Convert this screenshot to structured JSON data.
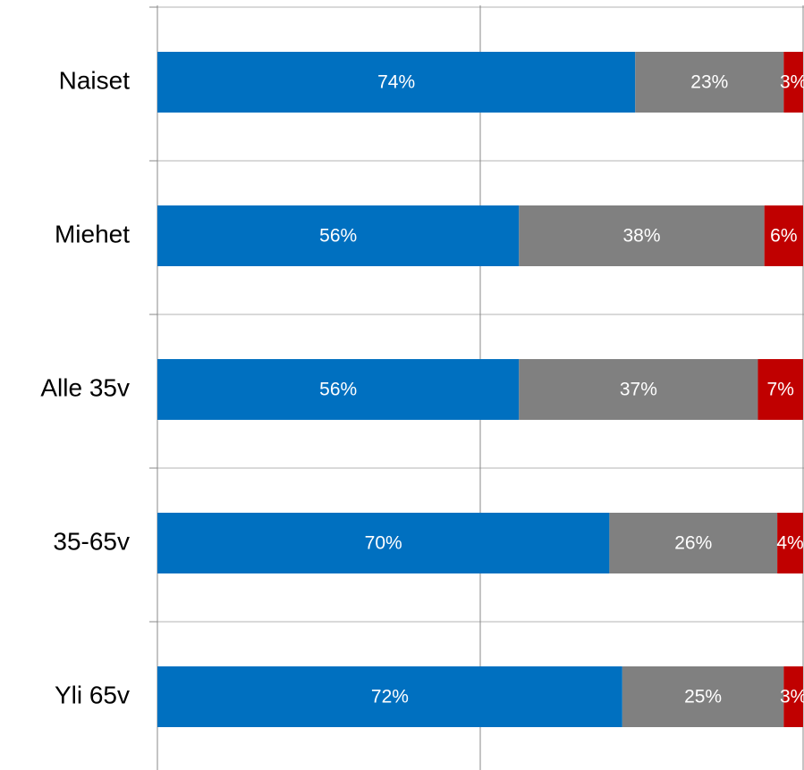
{
  "chart_data": {
    "type": "stacked-bar-horizontal",
    "categories": [
      "Naiset",
      "Miehet",
      "Alle 35v",
      "35-65v",
      "Yli 65v"
    ],
    "series": [
      {
        "color": "#0070c0",
        "values": [
          74,
          56,
          56,
          70,
          72
        ],
        "value_labels": [
          "74%",
          "56%",
          "56%",
          "70%",
          "72%"
        ]
      },
      {
        "color": "#808080",
        "values": [
          23,
          38,
          37,
          26,
          25
        ],
        "value_labels": [
          "23%",
          "38%",
          "37%",
          "26%",
          "25%"
        ]
      },
      {
        "color": "#c00000",
        "values": [
          3,
          6,
          7,
          4,
          3
        ],
        "value_labels": [
          "3%",
          "6%",
          "7%",
          "4%",
          "3%"
        ]
      }
    ],
    "xlim": [
      0,
      100
    ],
    "xticks": [
      0,
      50,
      100
    ],
    "grid": true
  }
}
